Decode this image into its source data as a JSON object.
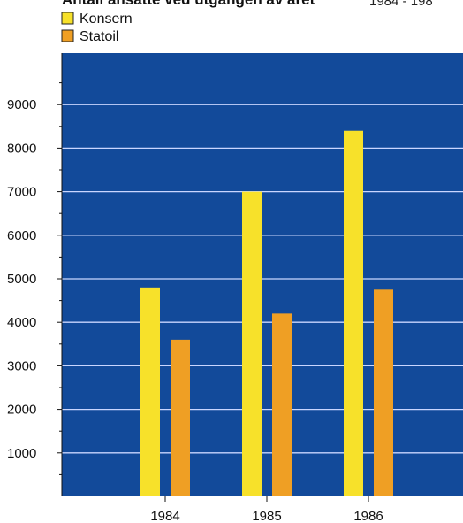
{
  "chart_data": {
    "type": "bar",
    "title": "Antall ansatte ved utgangen av året",
    "year_range": "1984 - 198",
    "categories": [
      "1984",
      "1985",
      "1986"
    ],
    "series": [
      {
        "name": "Konsern",
        "values": [
          4800,
          7000,
          8400
        ],
        "color": "#f7e12a"
      },
      {
        "name": "Statoil",
        "values": [
          3600,
          4200,
          4750
        ],
        "color": "#ef9f24"
      }
    ],
    "ylim": [
      0,
      10000
    ],
    "yticks": [
      "1000",
      "2000",
      "3000",
      "4000",
      "5000",
      "6000",
      "7000",
      "8000",
      "9000"
    ],
    "xlabel": "",
    "ylabel": "",
    "grid": true,
    "legend_position": "top-left",
    "plot_background": "#124a9a"
  }
}
